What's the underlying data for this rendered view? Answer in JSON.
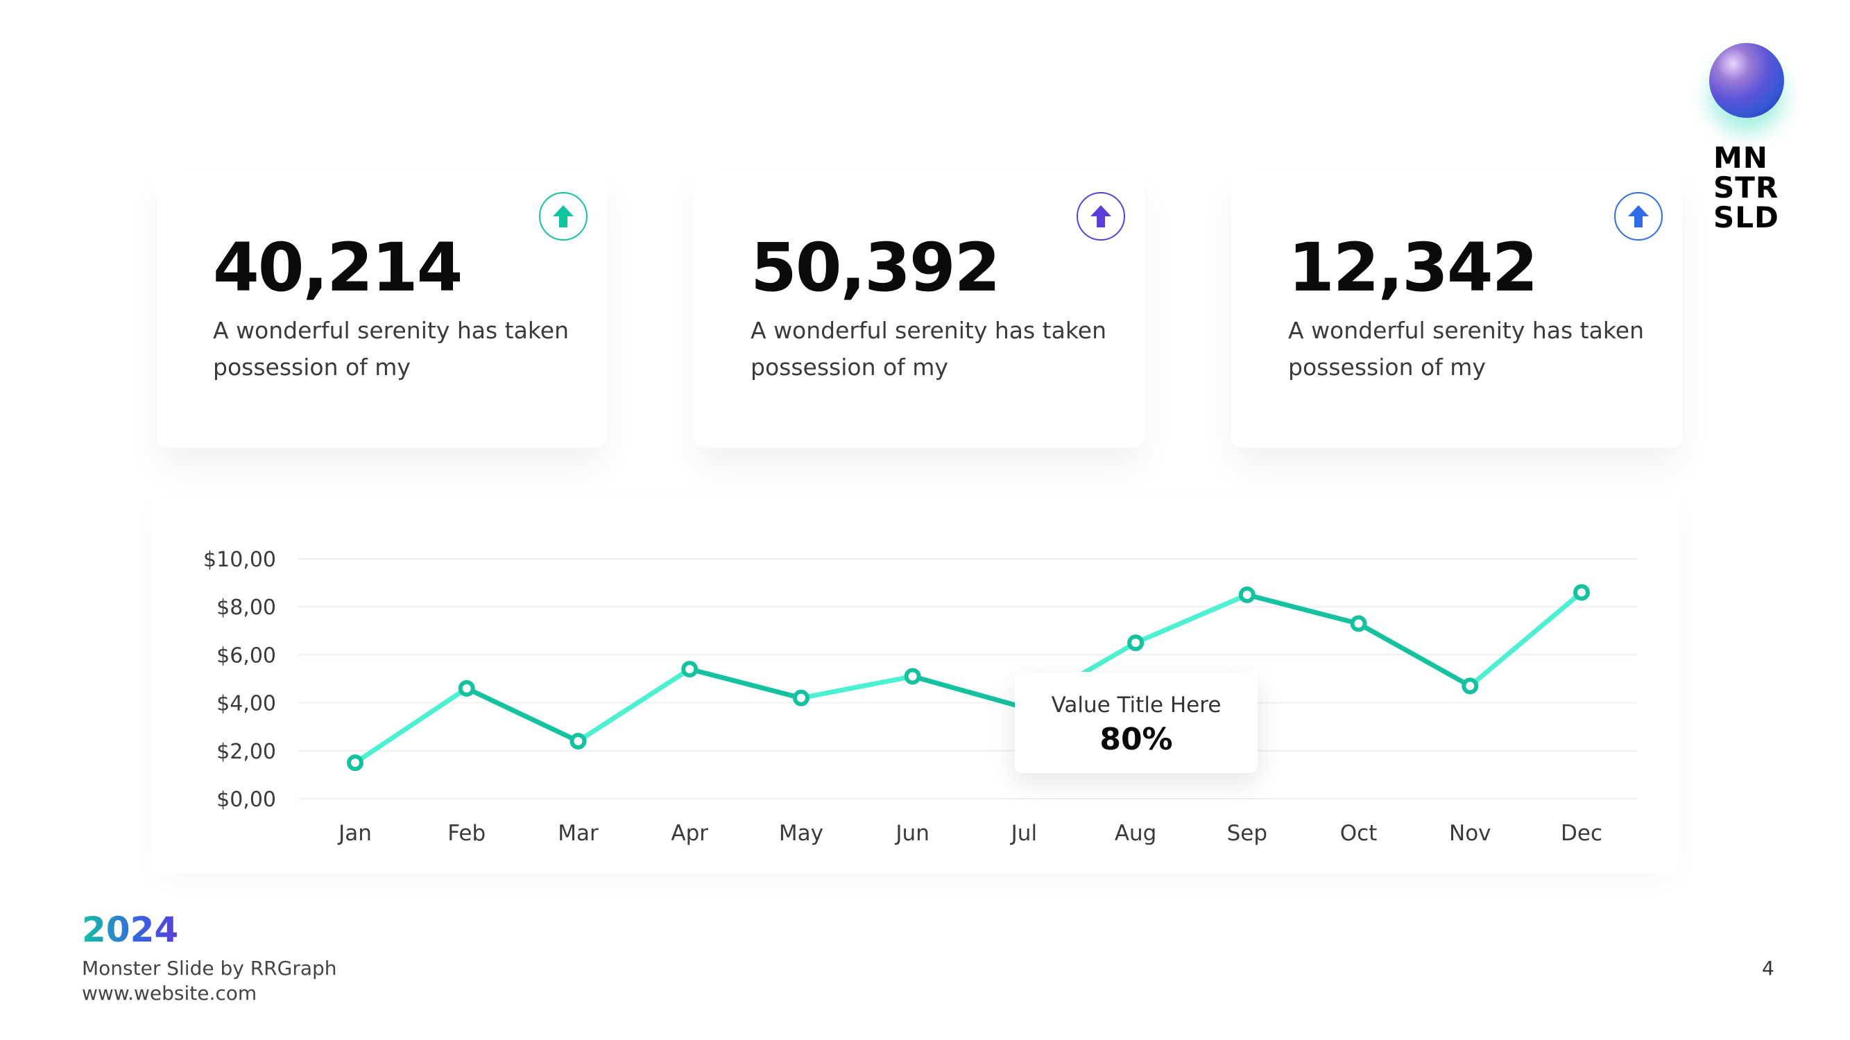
{
  "logo": {
    "lines": [
      "MN",
      "STR",
      "SLD"
    ]
  },
  "cards": [
    {
      "value": "40,214",
      "description": "A wonderful serenity has taken possession of my",
      "icon": "arrow-up-icon",
      "accent": "#13c4a1"
    },
    {
      "value": "50,392",
      "description": "A wonderful serenity has taken possession of my",
      "icon": "arrow-up-icon",
      "accent": "#5b3fd8"
    },
    {
      "value": "12,342",
      "description": "A wonderful serenity has taken possession of my",
      "icon": "arrow-up-icon",
      "accent": "#2f6de6"
    }
  ],
  "chart_data": {
    "type": "line",
    "categories": [
      "Jan",
      "Feb",
      "Mar",
      "Apr",
      "May",
      "Jun",
      "Jul",
      "Aug",
      "Sep",
      "Oct",
      "Nov",
      "Dec"
    ],
    "series": [
      {
        "values": [
          1.5,
          4.6,
          2.4,
          5.4,
          4.2,
          5.1,
          3.8,
          6.5,
          8.5,
          7.3,
          4.7,
          8.6
        ]
      }
    ],
    "y_tick_labels": [
      "$0,00",
      "$2,00",
      "$4,00",
      "$6,00",
      "$8,00",
      "$10,00"
    ],
    "y_ticks": [
      0,
      2,
      4,
      6,
      8,
      10
    ],
    "ylim": [
      0,
      10
    ],
    "grid": true,
    "line_color_a": "#4ef0d2",
    "line_color_b": "#14c29f"
  },
  "tooltip": {
    "title": "Value Title Here",
    "value": "80%"
  },
  "footer": {
    "year": "2024",
    "credit": "Monster Slide by RRGraph",
    "website": "www.website.com",
    "page": "4"
  }
}
